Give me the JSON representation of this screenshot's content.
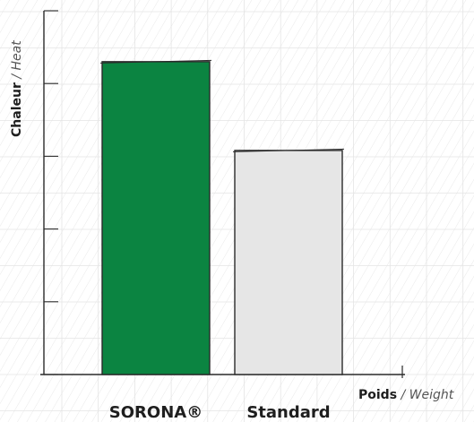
{
  "chart_data": {
    "type": "bar",
    "categories": [
      "SORONA®",
      "Standard"
    ],
    "values": [
      4.3,
      3.08
    ],
    "ylim": [
      0,
      5
    ],
    "ylabel_main": "Chaleur",
    "ylabel_sub": " / Heat",
    "xlabel_main": "Poids",
    "xlabel_sub": " / Weight",
    "grid": true,
    "colors": [
      "#0b8441",
      "#e6e6e6"
    ]
  }
}
